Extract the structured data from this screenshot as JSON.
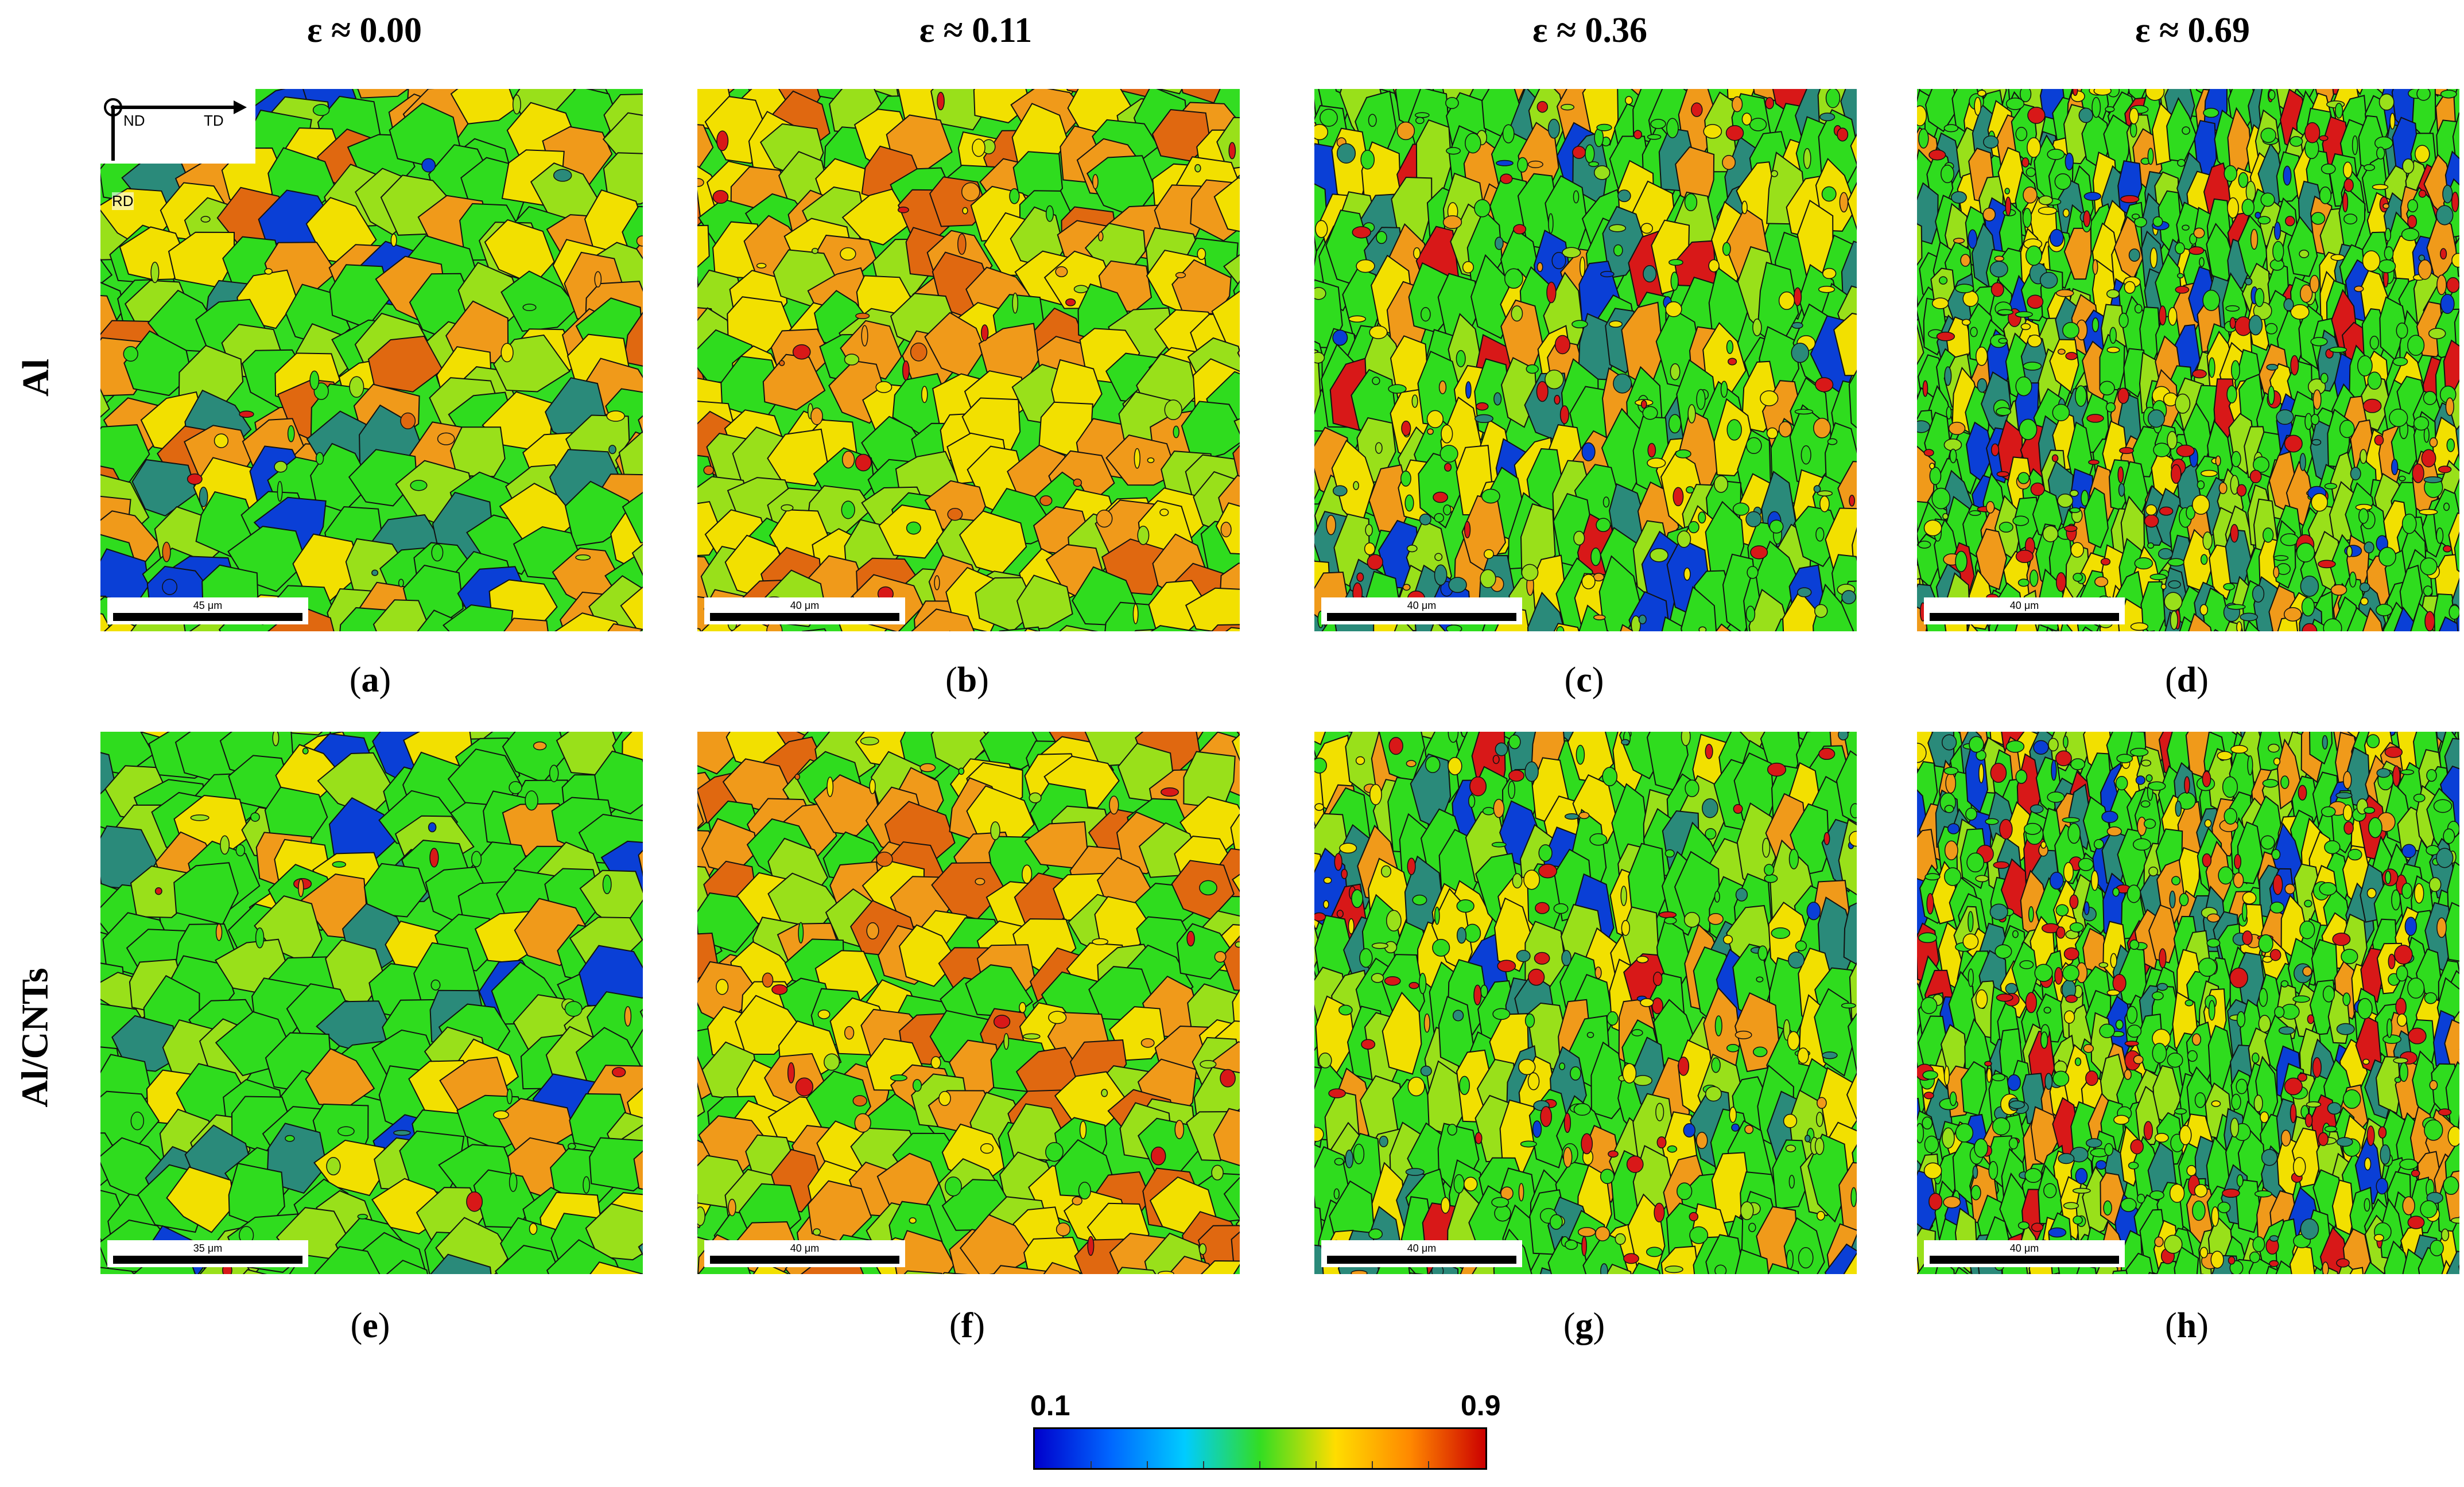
{
  "columns": [
    "ε ≈ 0.00",
    "ε ≈ 0.11",
    "ε ≈ 0.36",
    "ε ≈ 0.69"
  ],
  "rows": [
    "Al",
    "Al/CNTs"
  ],
  "captions": [
    "a",
    "b",
    "c",
    "d",
    "e",
    "f",
    "g",
    "h"
  ],
  "scale_bars": [
    "45 μm",
    "40 μm",
    "40 μm",
    "40 μm",
    "35 μm",
    "40 μm",
    "40 μm",
    "40 μm"
  ],
  "axes_labels": {
    "nd": "ND",
    "td": "TD",
    "rd": "RD"
  },
  "colorbar": {
    "min": "0.1",
    "max": "0.9",
    "colors": [
      "#0000cc",
      "#0066ff",
      "#00ccff",
      "#33dd22",
      "#ffdd00",
      "#ff8800",
      "#cc0000"
    ]
  },
  "palette": {
    "green": "#2fdc1e",
    "lime": "#99e01a",
    "yellow": "#f2e000",
    "orange": "#f09a1a",
    "dark_orange": "#e06810",
    "teal": "#2a8a7a",
    "blue": "#0a3fd6",
    "red": "#d81818"
  }
}
